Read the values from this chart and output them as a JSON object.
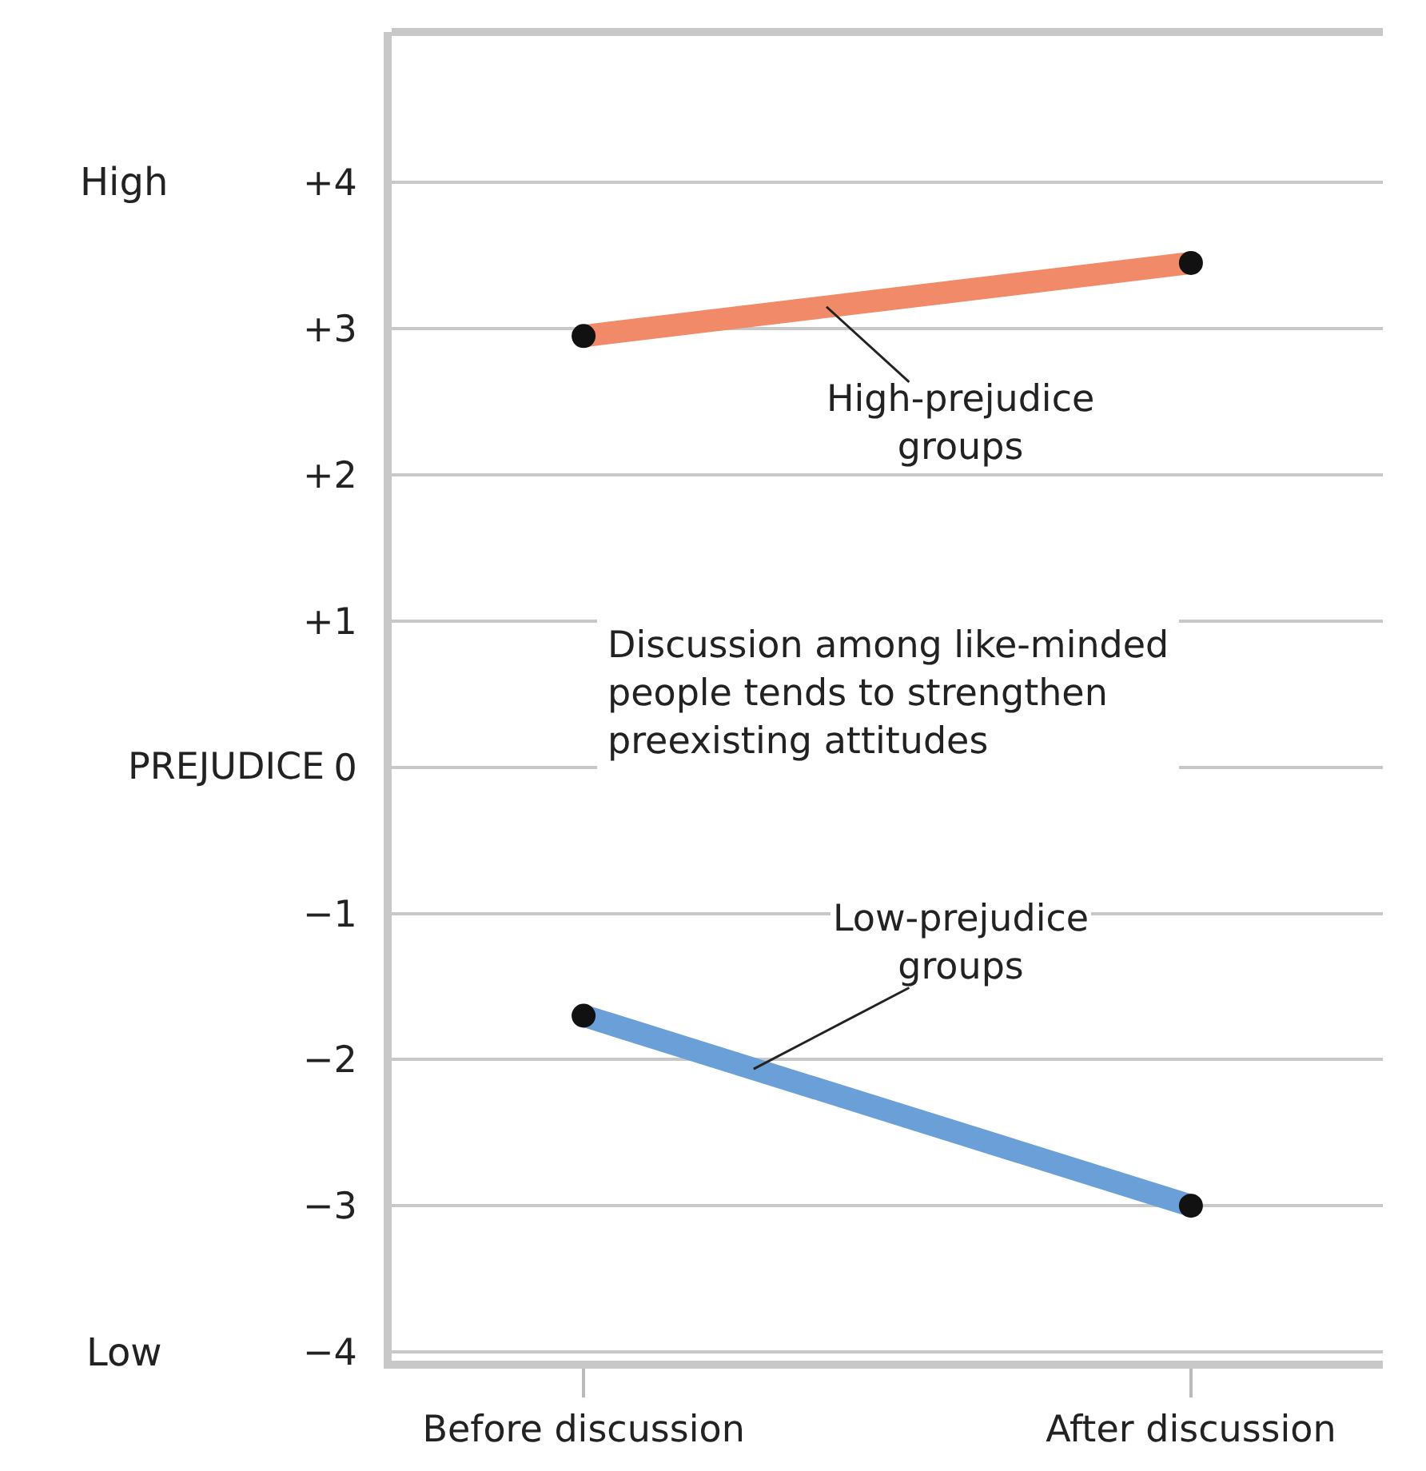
{
  "chart_data": {
    "type": "line",
    "ylabel": "PREJUDICE",
    "categories": [
      "Before discussion",
      "After discussion"
    ],
    "series": [
      {
        "name": "High-prejudice\ngroups",
        "color": "#f08a68",
        "values": [
          2.95,
          3.45
        ]
      },
      {
        "name": "Low-prejudice\ngroups",
        "color": "#6a9fd8",
        "values": [
          -1.7,
          -3.0
        ]
      }
    ],
    "ylim": [
      -4.06,
      5.03
    ],
    "yticks": [
      {
        "value": 4,
        "label": "+4"
      },
      {
        "value": 3,
        "label": "+3"
      },
      {
        "value": 2,
        "label": "+2"
      },
      {
        "value": 1,
        "label": "+1"
      },
      0,
      {
        "value": -1,
        "label": "−1"
      },
      {
        "value": -2,
        "label": "−2"
      },
      {
        "value": -3,
        "label": "−3"
      },
      {
        "value": -4,
        "label": "−4"
      }
    ],
    "annotations": [
      "High",
      "Low",
      "Discussion among like-minded\npeople tends to strengthen\npreexisting attitudes"
    ],
    "grid": "y",
    "marker": "circle",
    "line_style": "solid",
    "legend": false
  }
}
